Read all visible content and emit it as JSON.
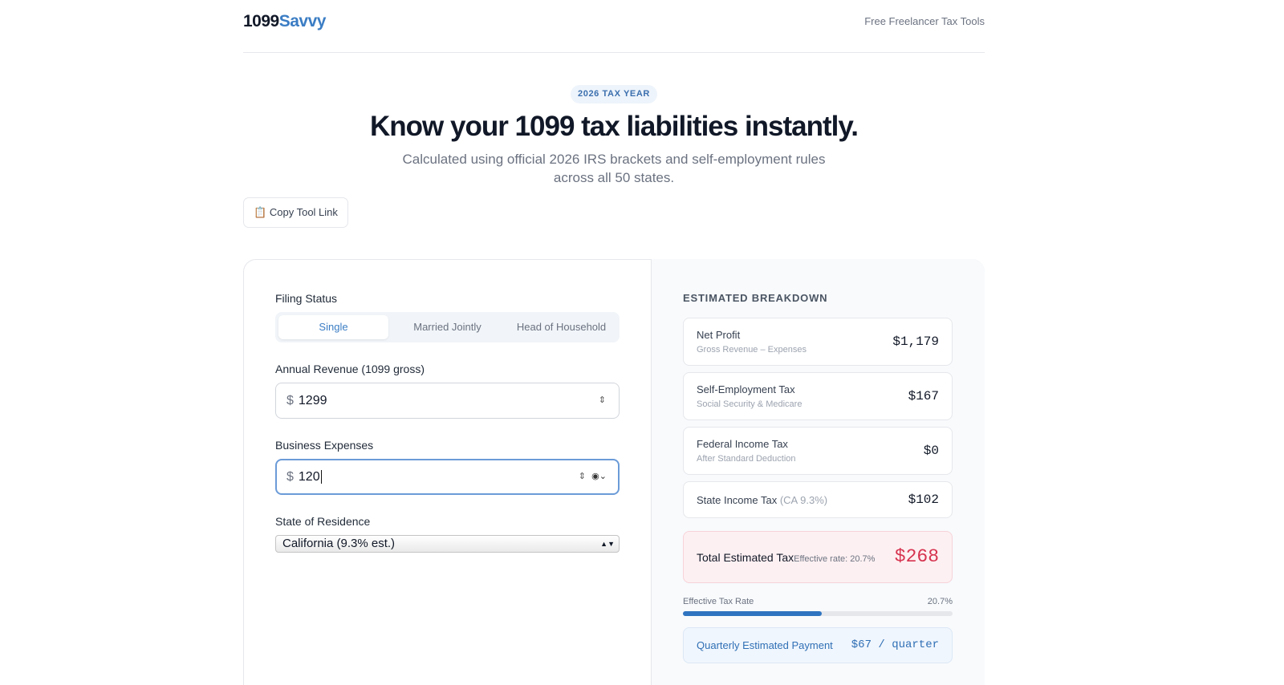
{
  "header": {
    "logo_main": "1099",
    "logo_accent": "Savvy",
    "nav_link": "Free Freelancer Tax Tools"
  },
  "hero": {
    "badge": "2026 TAX YEAR",
    "title": "Know your 1099 tax liabilities instantly.",
    "subtitle": "Calculated using official 2026 IRS brackets and self-employment rules across all 50 states.",
    "copy_button": "📋 Copy Tool Link"
  },
  "form": {
    "filing_status_label": "Filing Status",
    "filing_options": [
      "Single",
      "Married Jointly",
      "Head of Household"
    ],
    "revenue_label": "Annual Revenue (1099 gross)",
    "currency_symbol": "$",
    "revenue_value": "1299",
    "expenses_label": "Business Expenses",
    "expenses_value": "120",
    "state_label": "State of Residence",
    "state_value": "California (9.3% est.)"
  },
  "breakdown": {
    "heading": "ESTIMATED BREAKDOWN",
    "rows": [
      {
        "label": "Net Profit",
        "sublabel": "Gross Revenue – Expenses",
        "amount": "$1,179"
      },
      {
        "label": "Self-Employment Tax",
        "sublabel": "Social Security & Medicare",
        "amount": "$167"
      },
      {
        "label": "Federal Income Tax",
        "sublabel": "After Standard Deduction",
        "amount": "$0"
      },
      {
        "label": "State Income Tax",
        "sublabel": "(CA 9.3%)",
        "amount": "$102"
      }
    ],
    "total": {
      "label": "Total Estimated Tax",
      "sublabel": "Effective rate: 20.7%",
      "amount": "$268"
    },
    "rate_bar": {
      "label": "Effective Tax Rate",
      "value_label": "20.7%",
      "fill_percent": 51.5
    },
    "quarterly": {
      "label": "Quarterly Estimated Payment",
      "amount": "$67 / quarter"
    }
  }
}
